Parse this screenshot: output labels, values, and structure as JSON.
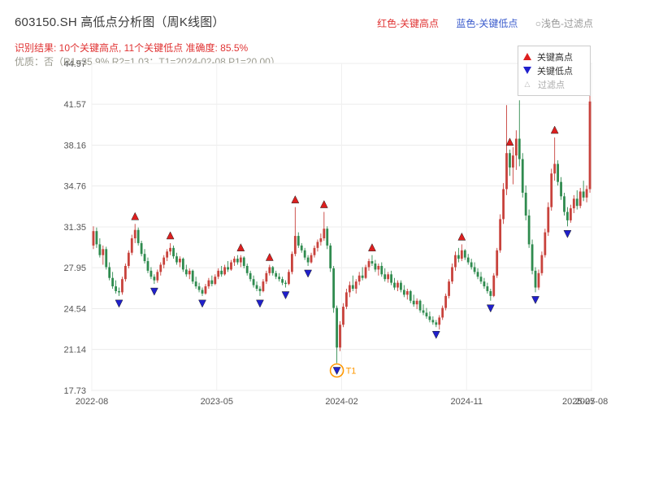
{
  "header": {
    "title": "603150.SH 高低点分析图（周K线图）",
    "legend_high": "红色-关键高点",
    "legend_low": "蓝色-关键低点",
    "legend_filter": "○浅色-过滤点",
    "result_line": "识别结果: 10个关键高点, 11个关键低点  准确度: 85.5%",
    "quality_line": "优质：否（R1=35.9%  R2=1.03；T1=2024-02-08 P1=20.00）"
  },
  "chart_legend": {
    "high": "关键高点",
    "low": "关键低点",
    "filter": "过滤点"
  },
  "colors": {
    "up": "#c8423c",
    "down": "#2f8b4f",
    "key_high": "#dd1f1f",
    "key_low": "#2020cc",
    "filtered": "#bbbbbb",
    "t1": "#ff9800",
    "header_red": "#e03333",
    "header_blue": "#3a5bcc",
    "header_gray": "#9a9a9a"
  },
  "chart_data": {
    "type": "candlestick",
    "title": "603150.SH 高低点分析图（周K线图）",
    "ylim": [
      17.73,
      44.97
    ],
    "y_ticks": [
      "17.73",
      "21.14",
      "24.54",
      "27.95",
      "31.35",
      "34.76",
      "38.16",
      "41.57",
      "44.97"
    ],
    "x_ticks": [
      {
        "label": "2022-08",
        "week": 0
      },
      {
        "label": "2023-05",
        "week": 39
      },
      {
        "label": "2024-02",
        "week": 78
      },
      {
        "label": "2024-11",
        "week": 117
      },
      {
        "label": "2025-08",
        "week": 156
      }
    ],
    "x_extra": {
      "label": "2025-07",
      "week": 152
    },
    "candles": [
      [
        29.8,
        31.4,
        29.5,
        31.0
      ],
      [
        31.0,
        31.3,
        29.6,
        29.9
      ],
      [
        29.9,
        30.4,
        28.8,
        29.0
      ],
      [
        29.0,
        29.8,
        28.2,
        29.5
      ],
      [
        29.5,
        29.7,
        27.8,
        28.0
      ],
      [
        28.0,
        28.4,
        26.9,
        27.1
      ],
      [
        27.1,
        27.6,
        26.2,
        26.4
      ],
      [
        26.4,
        26.9,
        25.8,
        26.0
      ],
      [
        26.0,
        26.3,
        25.6,
        25.9
      ],
      [
        25.9,
        27.2,
        25.7,
        27.0
      ],
      [
        27.0,
        28.3,
        26.8,
        28.1
      ],
      [
        28.1,
        29.4,
        27.9,
        29.2
      ],
      [
        29.2,
        30.7,
        29.0,
        30.4
      ],
      [
        30.4,
        31.6,
        30.0,
        31.1
      ],
      [
        31.1,
        31.3,
        29.8,
        30.0
      ],
      [
        30.0,
        30.2,
        28.9,
        29.1
      ],
      [
        29.1,
        29.5,
        28.3,
        28.5
      ],
      [
        28.5,
        28.8,
        27.5,
        27.7
      ],
      [
        27.7,
        28.0,
        27.0,
        27.2
      ],
      [
        27.2,
        27.4,
        26.6,
        26.9
      ],
      [
        26.9,
        27.8,
        26.7,
        27.6
      ],
      [
        27.6,
        28.4,
        27.3,
        28.2
      ],
      [
        28.2,
        29.0,
        27.9,
        28.8
      ],
      [
        28.8,
        29.5,
        28.5,
        29.3
      ],
      [
        29.3,
        30.0,
        29.0,
        29.6
      ],
      [
        29.6,
        29.8,
        28.7,
        28.9
      ],
      [
        28.9,
        29.2,
        28.2,
        28.4
      ],
      [
        28.4,
        28.9,
        28.0,
        28.7
      ],
      [
        28.7,
        28.8,
        27.6,
        27.8
      ],
      [
        27.8,
        28.2,
        27.2,
        27.4
      ],
      [
        27.4,
        27.9,
        27.0,
        27.7
      ],
      [
        27.7,
        27.8,
        26.6,
        26.8
      ],
      [
        26.8,
        27.2,
        26.2,
        26.4
      ],
      [
        26.4,
        26.7,
        25.9,
        26.1
      ],
      [
        26.1,
        26.3,
        25.6,
        25.8
      ],
      [
        25.8,
        26.6,
        25.7,
        26.4
      ],
      [
        26.4,
        27.1,
        26.2,
        26.9
      ],
      [
        26.9,
        27.3,
        26.4,
        26.6
      ],
      [
        26.6,
        27.4,
        26.5,
        27.2
      ],
      [
        27.2,
        27.9,
        27.0,
        27.7
      ],
      [
        27.7,
        28.1,
        27.2,
        27.4
      ],
      [
        27.4,
        28.2,
        27.3,
        28.0
      ],
      [
        28.0,
        28.5,
        27.6,
        27.8
      ],
      [
        27.8,
        28.6,
        27.7,
        28.4
      ],
      [
        28.4,
        28.9,
        28.1,
        28.7
      ],
      [
        28.7,
        29.0,
        28.2,
        28.4
      ],
      [
        28.4,
        29.0,
        28.0,
        28.8
      ],
      [
        28.8,
        28.9,
        27.9,
        28.1
      ],
      [
        28.1,
        28.3,
        27.3,
        27.5
      ],
      [
        27.5,
        27.7,
        26.8,
        27.0
      ],
      [
        27.0,
        27.3,
        26.3,
        26.5
      ],
      [
        26.5,
        26.8,
        26.0,
        26.2
      ],
      [
        26.2,
        26.4,
        25.6,
        26.0
      ],
      [
        26.0,
        27.0,
        25.9,
        26.8
      ],
      [
        26.8,
        27.7,
        26.6,
        27.5
      ],
      [
        27.5,
        28.2,
        27.3,
        28.0
      ],
      [
        28.0,
        28.1,
        27.3,
        27.5
      ],
      [
        27.5,
        27.7,
        27.0,
        27.2
      ],
      [
        27.2,
        27.5,
        26.8,
        27.0
      ],
      [
        27.0,
        27.2,
        26.5,
        26.7
      ],
      [
        26.7,
        26.9,
        26.3,
        26.6
      ],
      [
        26.6,
        27.8,
        26.5,
        27.6
      ],
      [
        27.6,
        29.3,
        27.4,
        29.1
      ],
      [
        29.1,
        33.0,
        28.9,
        30.6
      ],
      [
        30.6,
        30.9,
        29.6,
        29.8
      ],
      [
        29.8,
        30.0,
        29.2,
        29.4
      ],
      [
        29.4,
        29.6,
        28.6,
        28.8
      ],
      [
        28.8,
        29.0,
        28.1,
        28.4
      ],
      [
        28.4,
        29.2,
        28.3,
        29.0
      ],
      [
        29.0,
        29.8,
        28.8,
        29.6
      ],
      [
        29.6,
        30.3,
        29.3,
        30.1
      ],
      [
        30.1,
        30.8,
        29.8,
        30.4
      ],
      [
        30.4,
        32.6,
        30.2,
        31.2
      ],
      [
        31.2,
        31.4,
        29.5,
        29.8
      ],
      [
        29.8,
        30.0,
        27.6,
        27.9
      ],
      [
        27.9,
        28.1,
        24.2,
        24.6
      ],
      [
        24.6,
        24.8,
        20.0,
        21.3
      ],
      [
        21.3,
        23.5,
        21.0,
        23.2
      ],
      [
        23.2,
        25.0,
        23.0,
        24.7
      ],
      [
        24.7,
        26.2,
        24.5,
        25.9
      ],
      [
        25.9,
        26.8,
        25.5,
        26.5
      ],
      [
        26.5,
        27.3,
        26.0,
        26.2
      ],
      [
        26.2,
        27.0,
        25.8,
        26.8
      ],
      [
        26.8,
        27.6,
        26.5,
        27.3
      ],
      [
        27.3,
        28.0,
        26.9,
        27.1
      ],
      [
        27.1,
        28.2,
        27.0,
        28.0
      ],
      [
        28.0,
        28.7,
        27.7,
        28.5
      ],
      [
        28.5,
        29.0,
        28.1,
        28.3
      ],
      [
        28.3,
        28.6,
        27.6,
        27.8
      ],
      [
        27.8,
        28.3,
        27.3,
        28.1
      ],
      [
        28.1,
        28.4,
        27.2,
        27.4
      ],
      [
        27.4,
        27.9,
        26.8,
        27.0
      ],
      [
        27.0,
        27.6,
        26.7,
        27.4
      ],
      [
        27.4,
        27.7,
        26.5,
        26.7
      ],
      [
        26.7,
        27.1,
        26.1,
        26.3
      ],
      [
        26.3,
        26.9,
        26.0,
        26.7
      ],
      [
        26.7,
        26.9,
        25.9,
        26.1
      ],
      [
        26.1,
        26.5,
        25.5,
        25.7
      ],
      [
        25.7,
        26.2,
        25.3,
        26.0
      ],
      [
        26.0,
        26.1,
        25.0,
        25.2
      ],
      [
        25.2,
        25.7,
        24.7,
        24.9
      ],
      [
        24.9,
        25.4,
        24.5,
        25.2
      ],
      [
        25.2,
        25.3,
        24.2,
        24.4
      ],
      [
        24.4,
        24.9,
        24.0,
        24.2
      ],
      [
        24.2,
        24.6,
        23.7,
        23.9
      ],
      [
        23.9,
        24.3,
        23.4,
        23.6
      ],
      [
        23.6,
        23.9,
        23.2,
        23.4
      ],
      [
        23.4,
        23.6,
        23.0,
        23.2
      ],
      [
        23.2,
        24.0,
        22.8,
        23.8
      ],
      [
        23.8,
        24.8,
        23.6,
        24.6
      ],
      [
        24.6,
        25.8,
        24.4,
        25.6
      ],
      [
        25.6,
        27.0,
        25.4,
        26.8
      ],
      [
        26.8,
        28.3,
        26.6,
        28.0
      ],
      [
        28.0,
        29.3,
        27.7,
        29.0
      ],
      [
        29.0,
        29.6,
        28.4,
        28.7
      ],
      [
        28.7,
        29.9,
        28.5,
        29.4
      ],
      [
        29.4,
        29.5,
        28.6,
        28.8
      ],
      [
        28.8,
        29.1,
        28.2,
        28.4
      ],
      [
        28.4,
        28.7,
        27.8,
        28.0
      ],
      [
        28.0,
        28.4,
        27.4,
        27.6
      ],
      [
        27.6,
        27.9,
        27.0,
        27.2
      ],
      [
        27.2,
        27.6,
        26.6,
        26.8
      ],
      [
        26.8,
        27.1,
        26.2,
        26.4
      ],
      [
        26.4,
        26.7,
        25.8,
        26.0
      ],
      [
        26.0,
        26.2,
        25.2,
        25.6
      ],
      [
        25.6,
        27.5,
        25.5,
        27.3
      ],
      [
        27.3,
        29.6,
        27.1,
        29.4
      ],
      [
        29.4,
        32.4,
        29.2,
        32.0
      ],
      [
        32.0,
        35.0,
        31.6,
        34.5
      ],
      [
        34.5,
        41.5,
        34.0,
        37.5
      ],
      [
        37.5,
        37.8,
        35.6,
        36.3
      ],
      [
        36.3,
        38.0,
        34.9,
        37.3
      ],
      [
        37.3,
        39.4,
        36.1,
        38.7
      ],
      [
        38.7,
        41.9,
        36.4,
        37.0
      ],
      [
        37.0,
        37.5,
        33.8,
        34.2
      ],
      [
        34.2,
        34.8,
        31.9,
        32.3
      ],
      [
        32.3,
        32.8,
        29.6,
        29.9
      ],
      [
        29.9,
        30.3,
        27.4,
        27.7
      ],
      [
        27.7,
        28.0,
        25.9,
        26.3
      ],
      [
        26.3,
        27.8,
        26.1,
        27.5
      ],
      [
        27.5,
        29.3,
        27.3,
        29.0
      ],
      [
        29.0,
        31.2,
        28.8,
        30.9
      ],
      [
        30.9,
        33.4,
        30.6,
        33.0
      ],
      [
        33.0,
        36.2,
        32.7,
        35.8
      ],
      [
        35.8,
        38.8,
        35.2,
        36.6
      ],
      [
        36.6,
        36.9,
        34.8,
        35.1
      ],
      [
        35.1,
        35.5,
        33.6,
        33.9
      ],
      [
        33.9,
        34.2,
        32.3,
        32.6
      ],
      [
        32.6,
        33.0,
        31.4,
        31.9
      ],
      [
        31.9,
        33.2,
        31.7,
        32.9
      ],
      [
        32.9,
        34.0,
        32.5,
        33.7
      ],
      [
        33.7,
        34.4,
        32.8,
        33.1
      ],
      [
        33.1,
        34.6,
        32.9,
        34.3
      ],
      [
        34.3,
        35.2,
        33.5,
        33.8
      ],
      [
        33.8,
        34.8,
        33.4,
        34.5
      ],
      [
        34.5,
        42.6,
        34.2,
        41.8
      ]
    ],
    "key_high_weeks": [
      13,
      24,
      46,
      55,
      63,
      72,
      87,
      115,
      130,
      144
    ],
    "key_low_weeks": [
      8,
      19,
      34,
      52,
      60,
      67,
      76,
      107,
      124,
      138,
      148
    ],
    "t1": {
      "week": 76,
      "label": "T1"
    }
  }
}
